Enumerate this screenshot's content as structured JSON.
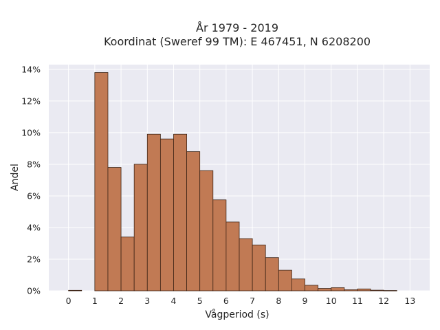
{
  "chart_data": {
    "type": "bar",
    "title_lines": [
      "År 1979 - 2019",
      "Koordinat (Sweref 99 TM): E 467451, N 6208200"
    ],
    "xlabel": "Vågperiod (s)",
    "ylabel": "Andel",
    "x_ticks": [
      "0",
      "1",
      "2",
      "3",
      "4",
      "5",
      "6",
      "7",
      "8",
      "9",
      "10",
      "11",
      "12",
      "13"
    ],
    "y_ticks": [
      "0%",
      "2%",
      "4%",
      "6%",
      "8%",
      "10%",
      "12%",
      "14%"
    ],
    "xlim": [
      -0.75,
      13.75
    ],
    "ylim": [
      0,
      14.3
    ],
    "bin_width": 0.5,
    "grid": true,
    "bin_starts": [
      0,
      1,
      1.5,
      2,
      2.5,
      3,
      3.5,
      4,
      4.5,
      5,
      5.5,
      6,
      6.5,
      7,
      7.5,
      8,
      8.5,
      9,
      9.5,
      10,
      10.5,
      11,
      11.5,
      12
    ],
    "values": [
      0.03,
      13.8,
      7.8,
      3.4,
      8.0,
      9.9,
      9.6,
      9.9,
      8.8,
      7.6,
      5.75,
      4.35,
      3.3,
      2.9,
      2.1,
      1.3,
      0.75,
      0.35,
      0.15,
      0.2,
      0.07,
      0.12,
      0.04,
      0.02
    ],
    "colors": {
      "bar_fill": "#c17a54",
      "bar_edge": "#3d2416",
      "plot_bg": "#eaeaf2",
      "grid": "#ffffff"
    }
  }
}
